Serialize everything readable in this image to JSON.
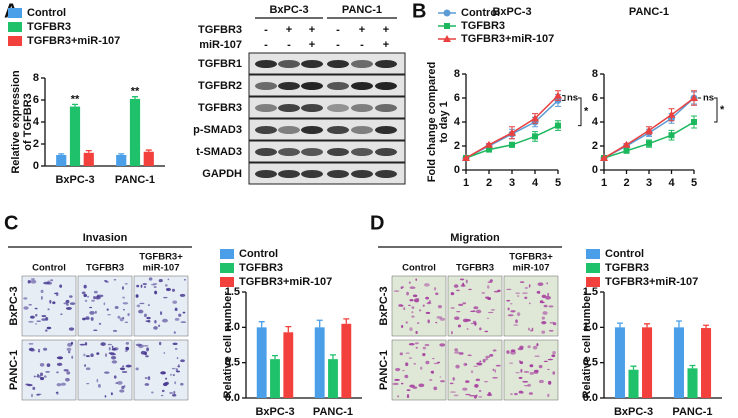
{
  "panel_labels": [
    "A",
    "B",
    "C",
    "D"
  ],
  "western_blot": {
    "cell_lines": [
      "BxPC-3",
      "PANC-1"
    ],
    "conditions": [
      {
        "name": "TGFBR3",
        "lanes": [
          "-",
          "+",
          "+",
          "-",
          "+",
          "+"
        ]
      },
      {
        "name": "miR-107",
        "lanes": [
          "-",
          "-",
          "+",
          "-",
          "-",
          "+"
        ]
      }
    ],
    "proteins": [
      "TGFBR1",
      "TGFBR2",
      "TGFBR3",
      "p-SMAD3",
      "t-SMAD3",
      "GAPDH"
    ]
  },
  "invasion": {
    "title": "Invasion",
    "columns": [
      [
        "Control"
      ],
      [
        "TGFBR3"
      ],
      [
        "TGFBR3+",
        "miR-107"
      ]
    ],
    "rows": [
      "BxPC-3",
      "PANC-1"
    ]
  },
  "migration": {
    "title": "Migration",
    "columns": [
      [
        "Control"
      ],
      [
        "TGFBR3"
      ],
      [
        "TGFBR3+",
        "miR-107"
      ]
    ],
    "rows": [
      "BxPC-3",
      "PANC-1"
    ]
  },
  "chart_data": [
    {
      "type": "bar",
      "ylabel": [
        "Relative expression",
        "of TGFBR3"
      ],
      "categories": [
        "BxPC-3",
        "PANC-1"
      ],
      "series": [
        {
          "name": "Control",
          "color": "#4a9fe8",
          "values": [
            1,
            1
          ],
          "errors": [
            0.1,
            0.1
          ]
        },
        {
          "name": "TGFBR3",
          "color": "#1fc16b",
          "values": [
            5.4,
            6.1
          ],
          "errors": [
            0.2,
            0.2
          ]
        },
        {
          "name": "TGFBR3+miR-107",
          "color": "#f2413d",
          "values": [
            1.2,
            1.3
          ],
          "errors": [
            0.2,
            0.15
          ]
        }
      ],
      "annotations": [
        "**",
        "**"
      ],
      "ylim": [
        0,
        8
      ],
      "yticks": [
        0,
        2,
        4,
        6,
        8
      ]
    },
    {
      "type": "line",
      "title": "BxPC-3",
      "ylabel": [
        "Fold change compared",
        "to day 1"
      ],
      "x": [
        1,
        2,
        3,
        4,
        5
      ],
      "xlim": [
        1,
        5
      ],
      "xticks": [
        1,
        2,
        3,
        4,
        5
      ],
      "series": [
        {
          "name": "Control",
          "color": "#5b9bd5",
          "marker": "circle",
          "values": [
            1,
            2,
            3,
            4,
            5.8
          ],
          "errors": [
            0,
            0.1,
            0.4,
            0.4,
            0.5
          ]
        },
        {
          "name": "TGFBR3",
          "color": "#1cb85e",
          "marker": "square",
          "values": [
            1,
            1.7,
            2.1,
            2.8,
            3.7
          ],
          "errors": [
            0,
            0.1,
            0.2,
            0.4,
            0.4
          ]
        },
        {
          "name": "TGFBR3+miR-107",
          "color": "#e8413f",
          "marker": "triangle",
          "values": [
            1,
            2.1,
            3.1,
            4.3,
            6.2
          ],
          "errors": [
            0,
            0.1,
            0.5,
            0.4,
            0.4
          ]
        }
      ],
      "annotations": [
        "ns",
        "*"
      ],
      "ylim": [
        0,
        8
      ],
      "yticks": [
        0,
        2,
        4,
        6,
        8
      ]
    },
    {
      "type": "line",
      "title": "PANC-1",
      "x": [
        1,
        2,
        3,
        4,
        5
      ],
      "xlim": [
        1,
        5
      ],
      "xticks": [
        1,
        2,
        3,
        4,
        5
      ],
      "series": [
        {
          "color": "#5b9bd5",
          "marker": "circle",
          "values": [
            1,
            2,
            3.1,
            4.3,
            6
          ],
          "errors": [
            0,
            0.1,
            0.3,
            0.4,
            0.5
          ]
        },
        {
          "color": "#1cb85e",
          "marker": "square",
          "values": [
            1,
            1.6,
            2.2,
            2.9,
            4
          ],
          "errors": [
            0,
            0.1,
            0.3,
            0.4,
            0.5
          ]
        },
        {
          "color": "#e8413f",
          "marker": "triangle",
          "values": [
            1,
            2.1,
            3.3,
            4.6,
            6
          ],
          "errors": [
            0,
            0.1,
            0.3,
            0.5,
            0.6
          ]
        }
      ],
      "annotations": [
        "ns",
        "*"
      ],
      "ylim": [
        0,
        8
      ],
      "yticks": [
        0,
        2,
        4,
        6,
        8
      ]
    },
    {
      "type": "bar",
      "ylabel": [
        "Relative cell number"
      ],
      "categories": [
        "BxPC-3",
        "PANC-1"
      ],
      "series": [
        {
          "name": "Control",
          "color": "#4a9fe8",
          "values": [
            1,
            1
          ],
          "errors": [
            0.08,
            0.1
          ]
        },
        {
          "name": "TGFBR3",
          "color": "#1fc16b",
          "values": [
            0.55,
            0.55
          ],
          "errors": [
            0.05,
            0.06
          ]
        },
        {
          "name": "TGFBR3+miR-107",
          "color": "#f2413d",
          "values": [
            0.93,
            1.05
          ],
          "errors": [
            0.08,
            0.07
          ]
        }
      ],
      "ylim": [
        0,
        1.5
      ],
      "yticks": [
        {
          "value": 0,
          "label": "0.0"
        },
        {
          "value": 0.5,
          "label": "0.5"
        },
        {
          "value": 1,
          "label": "1.0"
        },
        {
          "value": 1.5,
          "label": "1.5"
        }
      ]
    },
    {
      "type": "bar",
      "ylabel": [
        "Relative cell number"
      ],
      "categories": [
        "BxPC-3",
        "PANC-1"
      ],
      "series": [
        {
          "name": "Control",
          "color": "#4a9fe8",
          "values": [
            1,
            1
          ],
          "errors": [
            0.06,
            0.09
          ]
        },
        {
          "name": "TGFBR3",
          "color": "#1fc16b",
          "values": [
            0.4,
            0.42
          ],
          "errors": [
            0.05,
            0.04
          ]
        },
        {
          "name": "TGFBR3+miR-107",
          "color": "#f2413d",
          "values": [
            1,
            0.99
          ],
          "errors": [
            0.05,
            0.04
          ]
        }
      ],
      "ylim": [
        0,
        1.5
      ],
      "yticks": [
        {
          "value": 0,
          "label": "0.0"
        },
        {
          "value": 0.5,
          "label": "0.5"
        },
        {
          "value": 1,
          "label": "1.0"
        },
        {
          "value": 1.5,
          "label": "1.5"
        }
      ]
    }
  ]
}
